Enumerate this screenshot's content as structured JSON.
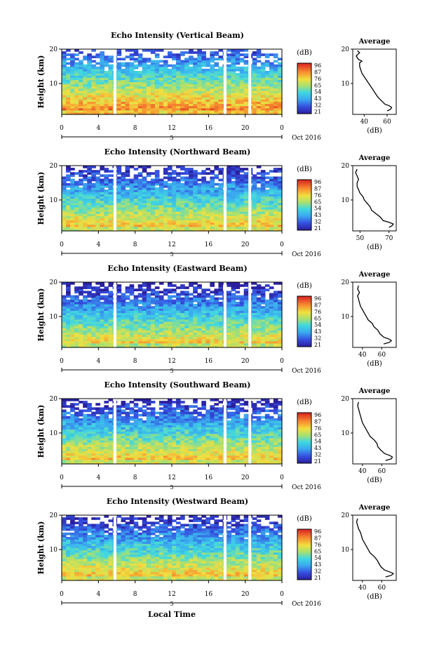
{
  "figure": {
    "bottom_xlabel": "Local Time",
    "date_label": "Oct 2016",
    "colorbar_unit": "(dB)",
    "average_title": "Average",
    "average_xlabel": "(dB)",
    "ylabel": "Height (km)",
    "day_marker": "5"
  },
  "chart_data": [
    {
      "type": "heatmap",
      "title": "Echo Intensity (Vertical Beam)",
      "ylabel": "Height (km)",
      "x_ticks": [
        "0",
        "4",
        "8",
        "12",
        "16",
        "20",
        "0"
      ],
      "x_range_hours": [
        0,
        24
      ],
      "y_ticks": [
        "10",
        "20"
      ],
      "y_range_km": [
        1,
        20
      ],
      "colorbar_ticks": [
        "96",
        "87",
        "76",
        "65",
        "54",
        "43",
        "32",
        "21"
      ],
      "colorbar_range_db": [
        21,
        96
      ],
      "data_gaps_hours": [
        5.8,
        17.8,
        20.5
      ],
      "profile": {
        "x_ticks": [
          "40",
          "60"
        ],
        "x_range": [
          30,
          68
        ],
        "points": [
          [
            60,
            2
          ],
          [
            63,
            2.5
          ],
          [
            64,
            3
          ],
          [
            62,
            3.5
          ],
          [
            58,
            4
          ],
          [
            55,
            5
          ],
          [
            52,
            6
          ],
          [
            50,
            7
          ],
          [
            48,
            8
          ],
          [
            46,
            9
          ],
          [
            44,
            10
          ],
          [
            42,
            11
          ],
          [
            40,
            12
          ],
          [
            38,
            13
          ],
          [
            37,
            14
          ],
          [
            36,
            15
          ],
          [
            36,
            16
          ],
          [
            38,
            16.5
          ],
          [
            35,
            17
          ],
          [
            33,
            18
          ],
          [
            36,
            19
          ],
          [
            34,
            19.5
          ]
        ]
      }
    },
    {
      "type": "heatmap",
      "title": "Echo Intensity (Northward Beam)",
      "ylabel": "Height (km)",
      "x_ticks": [
        "0",
        "4",
        "8",
        "12",
        "16",
        "20",
        "0"
      ],
      "x_range_hours": [
        0,
        24
      ],
      "y_ticks": [
        "10",
        "20"
      ],
      "y_range_km": [
        1,
        20
      ],
      "colorbar_ticks": [
        "96",
        "87",
        "76",
        "65",
        "54",
        "43",
        "32",
        "21"
      ],
      "colorbar_range_db": [
        21,
        96
      ],
      "data_gaps_hours": [
        5.8,
        17.8,
        20.5
      ],
      "profile": {
        "x_ticks": [
          "50",
          "70"
        ],
        "x_range": [
          45,
          75
        ],
        "points": [
          [
            70,
            2
          ],
          [
            72,
            2.5
          ],
          [
            73,
            3
          ],
          [
            70,
            3.5
          ],
          [
            66,
            4
          ],
          [
            64,
            5
          ],
          [
            61,
            6
          ],
          [
            58,
            7
          ],
          [
            57,
            8
          ],
          [
            55,
            9
          ],
          [
            53,
            10
          ],
          [
            52,
            11
          ],
          [
            50,
            12
          ],
          [
            49,
            13
          ],
          [
            48,
            14
          ],
          [
            48,
            15
          ],
          [
            49,
            16
          ],
          [
            48,
            17
          ],
          [
            47,
            18
          ],
          [
            48,
            19
          ]
        ]
      }
    },
    {
      "type": "heatmap",
      "title": "Echo Intensity (Eastward Beam)",
      "ylabel": "Height (km)",
      "x_ticks": [
        "0",
        "4",
        "8",
        "12",
        "16",
        "20",
        "0"
      ],
      "x_range_hours": [
        0,
        24
      ],
      "y_ticks": [
        "10",
        "20"
      ],
      "y_range_km": [
        1,
        20
      ],
      "colorbar_ticks": [
        "96",
        "87",
        "76",
        "65",
        "54",
        "43",
        "32",
        "21"
      ],
      "colorbar_range_db": [
        21,
        96
      ],
      "data_gaps_hours": [
        5.8,
        17.8,
        20.5
      ],
      "profile": {
        "x_ticks": [
          "40",
          "60"
        ],
        "x_range": [
          30,
          75
        ],
        "points": [
          [
            62,
            2
          ],
          [
            68,
            2.5
          ],
          [
            70,
            3
          ],
          [
            67,
            3.5
          ],
          [
            62,
            4
          ],
          [
            58,
            5
          ],
          [
            56,
            6
          ],
          [
            52,
            7
          ],
          [
            50,
            8
          ],
          [
            46,
            9
          ],
          [
            44,
            10
          ],
          [
            42,
            11
          ],
          [
            40,
            12
          ],
          [
            38,
            13
          ],
          [
            37,
            14
          ],
          [
            36,
            15
          ],
          [
            35,
            16
          ],
          [
            37,
            17
          ],
          [
            35,
            18
          ],
          [
            36,
            19
          ]
        ]
      }
    },
    {
      "type": "heatmap",
      "title": "Echo Intensity (Southward Beam)",
      "ylabel": "Height (km)",
      "x_ticks": [
        "0",
        "4",
        "8",
        "12",
        "16",
        "20",
        "0"
      ],
      "x_range_hours": [
        0,
        24
      ],
      "y_ticks": [
        "10",
        "20"
      ],
      "y_range_km": [
        1,
        20
      ],
      "colorbar_ticks": [
        "96",
        "87",
        "76",
        "65",
        "54",
        "43",
        "32",
        "21"
      ],
      "colorbar_range_db": [
        21,
        96
      ],
      "data_gaps_hours": [
        5.8,
        17.8,
        20.5
      ],
      "profile": {
        "x_ticks": [
          "40",
          "60"
        ],
        "x_range": [
          30,
          75
        ],
        "points": [
          [
            64,
            2
          ],
          [
            70,
            2.5
          ],
          [
            71,
            3
          ],
          [
            68,
            3.5
          ],
          [
            63,
            4
          ],
          [
            59,
            5
          ],
          [
            56,
            6
          ],
          [
            55,
            7
          ],
          [
            52,
            8
          ],
          [
            48,
            9
          ],
          [
            46,
            10
          ],
          [
            44,
            11
          ],
          [
            42,
            12
          ],
          [
            40,
            13
          ],
          [
            39,
            14
          ],
          [
            38,
            15
          ],
          [
            37,
            16
          ],
          [
            36,
            17
          ],
          [
            35,
            18
          ],
          [
            36,
            19
          ]
        ]
      }
    },
    {
      "type": "heatmap",
      "title": "Echo Intensity (Westward Beam)",
      "ylabel": "Height (km)",
      "x_ticks": [
        "0",
        "4",
        "8",
        "12",
        "16",
        "20",
        "0"
      ],
      "x_range_hours": [
        0,
        24
      ],
      "y_ticks": [
        "10",
        "20"
      ],
      "y_range_km": [
        1,
        20
      ],
      "colorbar_ticks": [
        "96",
        "87",
        "76",
        "65",
        "54",
        "43",
        "32",
        "21"
      ],
      "colorbar_range_db": [
        21,
        96
      ],
      "data_gaps_hours": [
        5.8,
        17.8,
        20.5
      ],
      "profile": {
        "x_ticks": [
          "40",
          "60"
        ],
        "x_range": [
          30,
          75
        ],
        "points": [
          [
            64,
            2
          ],
          [
            70,
            2.5
          ],
          [
            72,
            3
          ],
          [
            68,
            3.5
          ],
          [
            63,
            4
          ],
          [
            59,
            5
          ],
          [
            57,
            6
          ],
          [
            55,
            7
          ],
          [
            52,
            8
          ],
          [
            48,
            9
          ],
          [
            46,
            10
          ],
          [
            44,
            11
          ],
          [
            42,
            12
          ],
          [
            40,
            13
          ],
          [
            39,
            14
          ],
          [
            38,
            15
          ],
          [
            36,
            16
          ],
          [
            35,
            17
          ],
          [
            34,
            18
          ],
          [
            35,
            19
          ]
        ]
      }
    }
  ]
}
